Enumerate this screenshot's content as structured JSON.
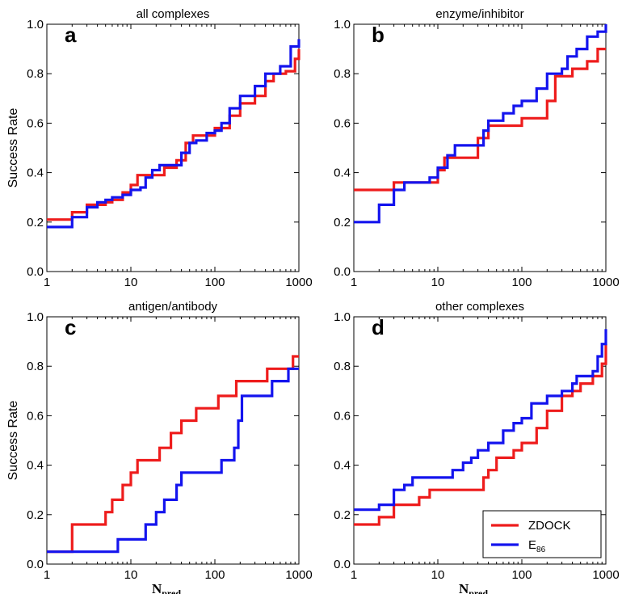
{
  "chart_data": [
    {
      "type": "line",
      "panel_letter": "a",
      "title": "all complexes",
      "xlabel": "",
      "ylabel": "Success Rate",
      "xscale": "log",
      "xlim": [
        1,
        1000
      ],
      "ylim": [
        0,
        1
      ],
      "x_ticks": [
        "1",
        "10",
        "100",
        "1000"
      ],
      "y_ticks": [
        "0.0",
        "0.2",
        "0.4",
        "0.6",
        "0.8",
        "1.0"
      ],
      "series": [
        {
          "color": "#ee1c1c",
          "points": [
            [
              1,
              0.21
            ],
            [
              2,
              0.24
            ],
            [
              3,
              0.27
            ],
            [
              4,
              0.27
            ],
            [
              5,
              0.28
            ],
            [
              6,
              0.29
            ],
            [
              8,
              0.32
            ],
            [
              10,
              0.35
            ],
            [
              12,
              0.39
            ],
            [
              20,
              0.39
            ],
            [
              25,
              0.42
            ],
            [
              35,
              0.45
            ],
            [
              45,
              0.52
            ],
            [
              55,
              0.55
            ],
            [
              80,
              0.55
            ],
            [
              100,
              0.58
            ],
            [
              150,
              0.63
            ],
            [
              200,
              0.68
            ],
            [
              300,
              0.71
            ],
            [
              400,
              0.77
            ],
            [
              500,
              0.8
            ],
            [
              700,
              0.81
            ],
            [
              900,
              0.86
            ],
            [
              1000,
              0.9
            ]
          ]
        },
        {
          "color": "#1414ee",
          "points": [
            [
              1,
              0.18
            ],
            [
              2,
              0.22
            ],
            [
              3,
              0.26
            ],
            [
              4,
              0.28
            ],
            [
              5,
              0.29
            ],
            [
              6,
              0.3
            ],
            [
              8,
              0.31
            ],
            [
              10,
              0.33
            ],
            [
              13,
              0.34
            ],
            [
              15,
              0.38
            ],
            [
              18,
              0.41
            ],
            [
              22,
              0.43
            ],
            [
              30,
              0.43
            ],
            [
              40,
              0.48
            ],
            [
              50,
              0.52
            ],
            [
              60,
              0.53
            ],
            [
              80,
              0.56
            ],
            [
              100,
              0.57
            ],
            [
              120,
              0.6
            ],
            [
              150,
              0.66
            ],
            [
              200,
              0.71
            ],
            [
              300,
              0.75
            ],
            [
              400,
              0.8
            ],
            [
              600,
              0.83
            ],
            [
              800,
              0.91
            ],
            [
              1000,
              0.94
            ]
          ]
        }
      ]
    },
    {
      "type": "line",
      "panel_letter": "b",
      "title": "enzyme/inhibitor",
      "xlabel": "",
      "ylabel": "",
      "xscale": "log",
      "xlim": [
        1,
        1000
      ],
      "ylim": [
        0,
        1
      ],
      "x_ticks": [
        "1",
        "10",
        "100",
        "1000"
      ],
      "y_ticks": [
        "0.0",
        "0.2",
        "0.4",
        "0.6",
        "0.8",
        "1.0"
      ],
      "series": [
        {
          "color": "#ee1c1c",
          "points": [
            [
              1,
              0.33
            ],
            [
              2,
              0.33
            ],
            [
              3,
              0.36
            ],
            [
              8,
              0.36
            ],
            [
              10,
              0.41
            ],
            [
              12,
              0.46
            ],
            [
              20,
              0.46
            ],
            [
              30,
              0.54
            ],
            [
              40,
              0.59
            ],
            [
              90,
              0.59
            ],
            [
              100,
              0.62
            ],
            [
              150,
              0.62
            ],
            [
              200,
              0.69
            ],
            [
              250,
              0.79
            ],
            [
              350,
              0.79
            ],
            [
              400,
              0.82
            ],
            [
              600,
              0.85
            ],
            [
              800,
              0.9
            ],
            [
              1000,
              0.9
            ]
          ]
        },
        {
          "color": "#1414ee",
          "points": [
            [
              1,
              0.2
            ],
            [
              2,
              0.27
            ],
            [
              3,
              0.33
            ],
            [
              4,
              0.36
            ],
            [
              7,
              0.36
            ],
            [
              8,
              0.38
            ],
            [
              10,
              0.42
            ],
            [
              13,
              0.47
            ],
            [
              16,
              0.51
            ],
            [
              30,
              0.51
            ],
            [
              35,
              0.57
            ],
            [
              40,
              0.61
            ],
            [
              60,
              0.64
            ],
            [
              80,
              0.67
            ],
            [
              100,
              0.69
            ],
            [
              150,
              0.74
            ],
            [
              200,
              0.8
            ],
            [
              300,
              0.82
            ],
            [
              350,
              0.87
            ],
            [
              450,
              0.9
            ],
            [
              600,
              0.95
            ],
            [
              800,
              0.97
            ],
            [
              1000,
              1.0
            ]
          ]
        }
      ]
    },
    {
      "type": "line",
      "panel_letter": "c",
      "title": "antigen/antibody",
      "xlabel": "N_pred",
      "xlabel_main": "N",
      "xlabel_sub": "pred",
      "ylabel": "Success Rate",
      "xscale": "log",
      "xlim": [
        1,
        1000
      ],
      "ylim": [
        0,
        1
      ],
      "x_ticks": [
        "1",
        "10",
        "100",
        "1000"
      ],
      "y_ticks": [
        "0.0",
        "0.2",
        "0.4",
        "0.6",
        "0.8",
        "1.0"
      ],
      "series": [
        {
          "color": "#ee1c1c",
          "points": [
            [
              1,
              0.05
            ],
            [
              2,
              0.16
            ],
            [
              4,
              0.16
            ],
            [
              5,
              0.21
            ],
            [
              6,
              0.26
            ],
            [
              8,
              0.32
            ],
            [
              10,
              0.37
            ],
            [
              12,
              0.42
            ],
            [
              20,
              0.42
            ],
            [
              22,
              0.47
            ],
            [
              30,
              0.53
            ],
            [
              40,
              0.58
            ],
            [
              60,
              0.63
            ],
            [
              100,
              0.63
            ],
            [
              110,
              0.68
            ],
            [
              150,
              0.68
            ],
            [
              180,
              0.74
            ],
            [
              400,
              0.74
            ],
            [
              420,
              0.79
            ],
            [
              800,
              0.79
            ],
            [
              850,
              0.84
            ],
            [
              1000,
              0.84
            ]
          ]
        },
        {
          "color": "#1414ee",
          "points": [
            [
              1,
              0.05
            ],
            [
              6,
              0.05
            ],
            [
              7,
              0.1
            ],
            [
              12,
              0.1
            ],
            [
              15,
              0.16
            ],
            [
              20,
              0.21
            ],
            [
              25,
              0.26
            ],
            [
              35,
              0.32
            ],
            [
              40,
              0.37
            ],
            [
              100,
              0.37
            ],
            [
              120,
              0.42
            ],
            [
              170,
              0.47
            ],
            [
              190,
              0.58
            ],
            [
              210,
              0.68
            ],
            [
              450,
              0.68
            ],
            [
              480,
              0.74
            ],
            [
              700,
              0.74
            ],
            [
              750,
              0.79
            ],
            [
              1000,
              0.79
            ]
          ]
        }
      ]
    },
    {
      "type": "line",
      "panel_letter": "d",
      "title": "other complexes",
      "xlabel": "N_pred",
      "xlabel_main": "N",
      "xlabel_sub": "pred",
      "ylabel": "",
      "xscale": "log",
      "xlim": [
        1,
        1000
      ],
      "ylim": [
        0,
        1
      ],
      "x_ticks": [
        "1",
        "10",
        "100",
        "1000"
      ],
      "y_ticks": [
        "0.0",
        "0.2",
        "0.4",
        "0.6",
        "0.8",
        "1.0"
      ],
      "series": [
        {
          "color": "#ee1c1c",
          "points": [
            [
              1,
              0.16
            ],
            [
              2,
              0.19
            ],
            [
              3,
              0.24
            ],
            [
              5,
              0.24
            ],
            [
              6,
              0.27
            ],
            [
              8,
              0.3
            ],
            [
              30,
              0.3
            ],
            [
              35,
              0.35
            ],
            [
              40,
              0.38
            ],
            [
              50,
              0.43
            ],
            [
              80,
              0.46
            ],
            [
              100,
              0.49
            ],
            [
              150,
              0.55
            ],
            [
              200,
              0.62
            ],
            [
              300,
              0.68
            ],
            [
              400,
              0.7
            ],
            [
              500,
              0.73
            ],
            [
              700,
              0.76
            ],
            [
              900,
              0.81
            ],
            [
              1000,
              0.89
            ]
          ]
        },
        {
          "color": "#1414ee",
          "points": [
            [
              1,
              0.22
            ],
            [
              2,
              0.24
            ],
            [
              3,
              0.3
            ],
            [
              4,
              0.32
            ],
            [
              5,
              0.35
            ],
            [
              10,
              0.35
            ],
            [
              15,
              0.38
            ],
            [
              20,
              0.41
            ],
            [
              25,
              0.43
            ],
            [
              30,
              0.46
            ],
            [
              40,
              0.49
            ],
            [
              60,
              0.54
            ],
            [
              80,
              0.57
            ],
            [
              100,
              0.59
            ],
            [
              130,
              0.65
            ],
            [
              200,
              0.68
            ],
            [
              300,
              0.7
            ],
            [
              400,
              0.73
            ],
            [
              450,
              0.76
            ],
            [
              700,
              0.78
            ],
            [
              800,
              0.84
            ],
            [
              900,
              0.89
            ],
            [
              1000,
              0.95
            ]
          ]
        }
      ]
    }
  ],
  "legend": {
    "placement": "bottom-right of panel d",
    "entries": [
      {
        "label": "ZDOCK",
        "sub": "",
        "color": "#ee1c1c"
      },
      {
        "label": "E",
        "sub": "86",
        "color": "#1414ee"
      }
    ]
  }
}
